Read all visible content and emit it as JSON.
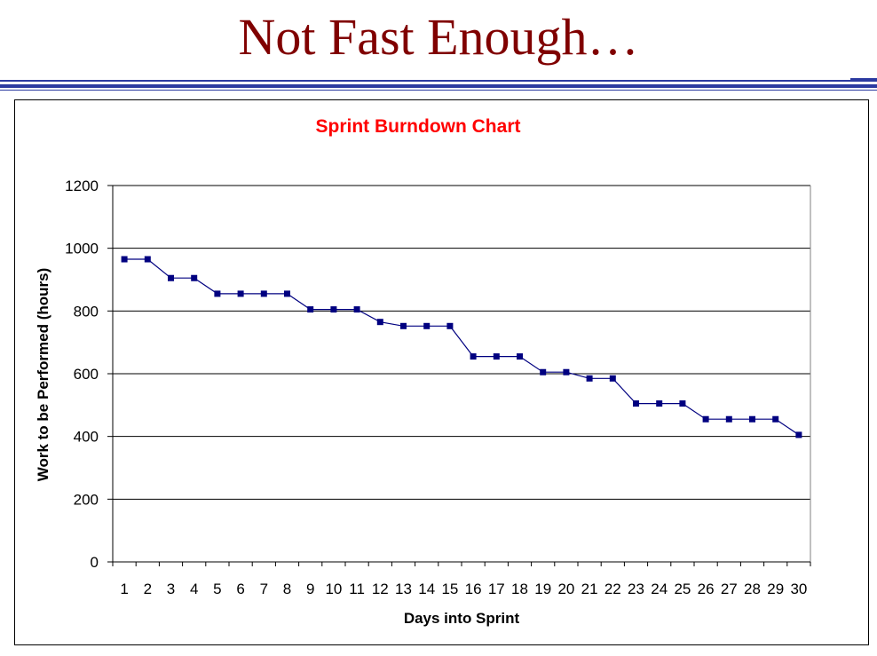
{
  "slide": {
    "title": "Not Fast Enough…"
  },
  "colors": {
    "title": "#800000",
    "rule": "#2b3aa0",
    "chart_title": "#ff0000",
    "series": "#000080"
  },
  "chart_data": {
    "type": "line",
    "title": "Sprint Burndown Chart",
    "xlabel": "Days into Sprint",
    "ylabel": "Work to be Performed (hours)",
    "categories": [
      1,
      2,
      3,
      4,
      5,
      6,
      7,
      8,
      9,
      10,
      11,
      12,
      13,
      14,
      15,
      16,
      17,
      18,
      19,
      20,
      21,
      22,
      23,
      24,
      25,
      26,
      27,
      28,
      29,
      30
    ],
    "series": [
      {
        "values": [
          965,
          965,
          905,
          905,
          855,
          855,
          855,
          855,
          805,
          805,
          805,
          765,
          752,
          752,
          752,
          655,
          655,
          655,
          605,
          605,
          585,
          585,
          505,
          505,
          505,
          455,
          455,
          455,
          455,
          405
        ]
      }
    ],
    "ylim": [
      0,
      1200
    ],
    "yticks": [
      0,
      200,
      400,
      600,
      800,
      1000,
      1200
    ],
    "grid": true,
    "legend": "none",
    "marker": "square"
  }
}
